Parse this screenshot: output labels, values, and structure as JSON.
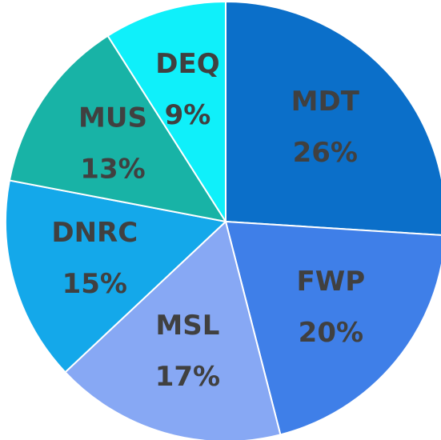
{
  "chart_data": {
    "type": "pie",
    "categories": [
      "MDT",
      "FWP",
      "MSL",
      "DNRC",
      "MUS",
      "DEQ"
    ],
    "values": [
      26,
      20,
      17,
      15,
      13,
      9
    ],
    "value_labels": [
      "26%",
      "20%",
      "17%",
      "15%",
      "13%",
      "9%"
    ],
    "colors": [
      "#0b6fc9",
      "#3f7fe8",
      "#87a8f4",
      "#14a8ea",
      "#18b3a6",
      "#0ff0fa"
    ]
  }
}
